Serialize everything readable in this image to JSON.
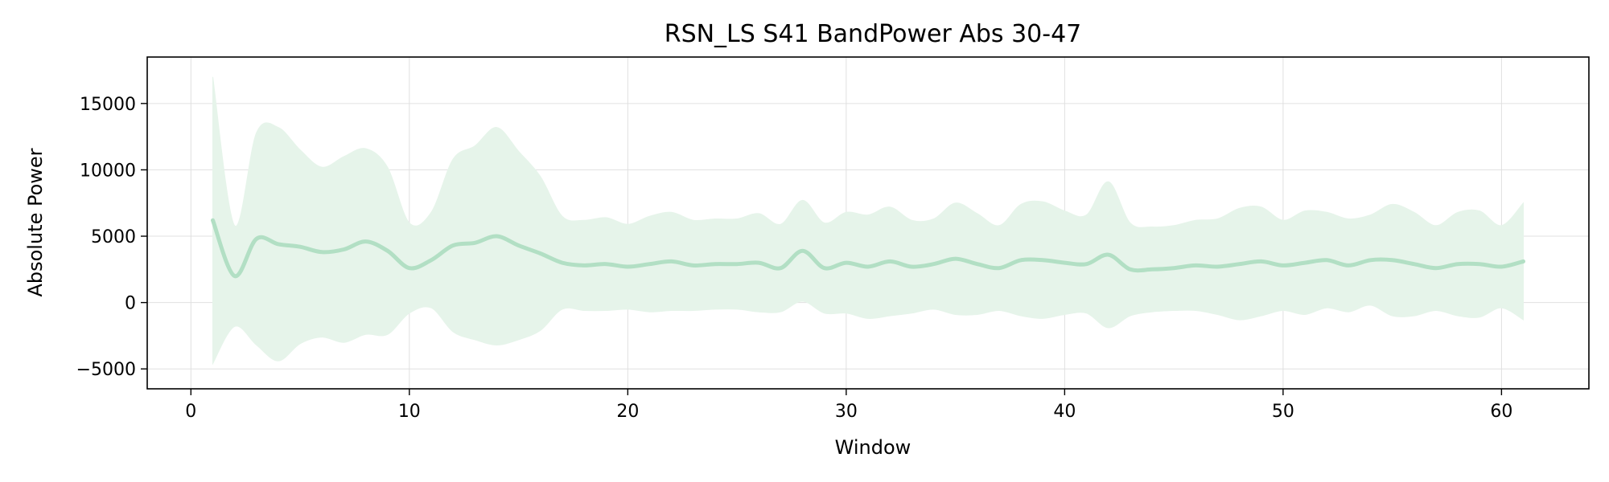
{
  "chart_data": {
    "type": "line",
    "title": "RSN_LS S41 BandPower Abs 30-47",
    "xlabel": "Window",
    "ylabel": "Absolute Power",
    "xlim": [
      -2,
      64
    ],
    "ylim": [
      -6500,
      18500
    ],
    "xticks": [
      0,
      10,
      20,
      30,
      40,
      50,
      60
    ],
    "yticks": [
      -5000,
      0,
      5000,
      10000,
      15000
    ],
    "grid": true,
    "legend": "none",
    "colors": {
      "line": "#b2dfc4",
      "band": "#e6f4ea",
      "grid": "#e0e0e0"
    },
    "series": [
      {
        "x": [
          1,
          2,
          3,
          4,
          5,
          6,
          7,
          8,
          9,
          10,
          11,
          12,
          13,
          14,
          15,
          16,
          17,
          18,
          19,
          20,
          21,
          22,
          23,
          24,
          25,
          26,
          27,
          28,
          29,
          30,
          31,
          32,
          33,
          34,
          35,
          36,
          37,
          38,
          39,
          40,
          41,
          42,
          43,
          44,
          45,
          46,
          47,
          48,
          49,
          50,
          51,
          52,
          53,
          54,
          55,
          56,
          57,
          58,
          59,
          60,
          61
        ],
        "mean": [
          6200,
          2000,
          4800,
          4400,
          4200,
          3800,
          4000,
          4600,
          3900,
          2600,
          3200,
          4300,
          4500,
          5000,
          4300,
          3700,
          3000,
          2800,
          2900,
          2700,
          2900,
          3100,
          2800,
          2900,
          2900,
          3000,
          2600,
          3900,
          2600,
          3000,
          2700,
          3100,
          2700,
          2900,
          3300,
          2900,
          2600,
          3200,
          3200,
          3000,
          2900,
          3600,
          2500,
          2500,
          2600,
          2800,
          2700,
          2900,
          3100,
          2800,
          3000,
          3200,
          2800,
          3200,
          3200,
          2900,
          2600,
          2900,
          2900,
          2700,
          3100
        ],
        "upper": [
          17000,
          5800,
          12800,
          13200,
          11500,
          10200,
          11000,
          11600,
          10200,
          6000,
          6800,
          10800,
          11800,
          13200,
          11400,
          9500,
          6500,
          6200,
          6400,
          5900,
          6500,
          6800,
          6200,
          6300,
          6300,
          6700,
          5900,
          7700,
          6000,
          6800,
          6600,
          7200,
          6200,
          6300,
          7500,
          6700,
          5800,
          7400,
          7600,
          6900,
          6600,
          9100,
          6000,
          5700,
          5800,
          6200,
          6300,
          7100,
          7200,
          6200,
          6900,
          6800,
          6300,
          6600,
          7400,
          6800,
          5800,
          6800,
          6900,
          5800,
          7500
        ]
      }
    ]
  }
}
